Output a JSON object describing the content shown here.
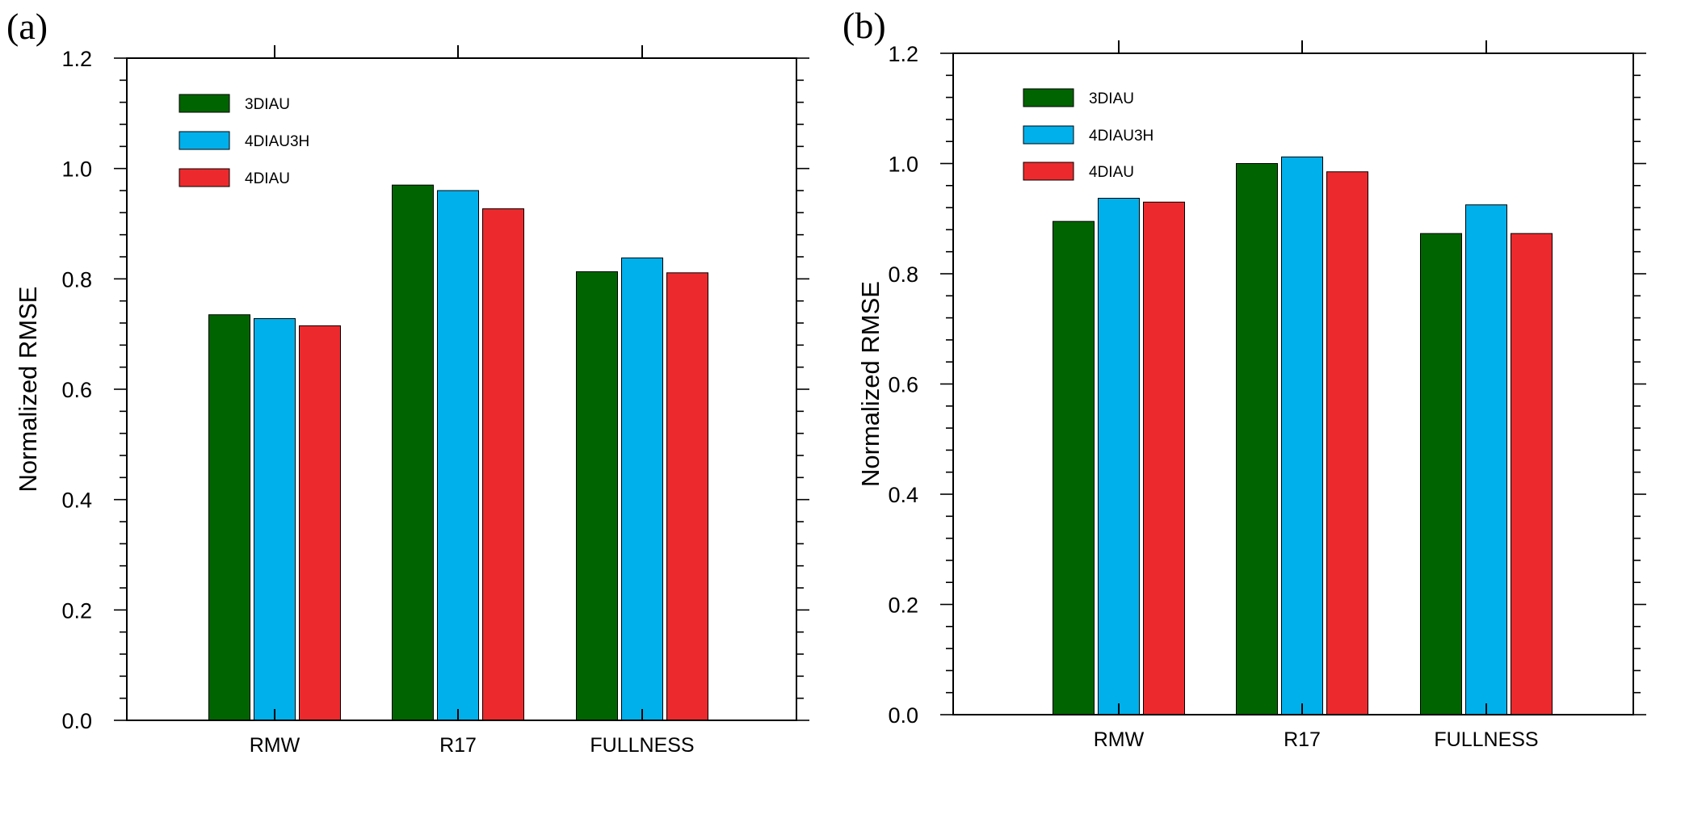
{
  "colors": {
    "3DIAU": "#006400",
    "4DIAU3H": "#00b0eb",
    "4DIAU": "#ec2a2d"
  },
  "chart_data": [
    {
      "type": "bar",
      "panel_label": "(a)",
      "categories": [
        "RMW",
        "R17",
        "FULLNESS"
      ],
      "series": [
        {
          "name": "3DIAU",
          "values": [
            0.735,
            0.97,
            0.813
          ]
        },
        {
          "name": "4DIAU3H",
          "values": [
            0.728,
            0.96,
            0.838
          ]
        },
        {
          "name": "4DIAU",
          "values": [
            0.715,
            0.927,
            0.811
          ]
        }
      ],
      "ylabel": "Normalized RMSE",
      "xlabel": "",
      "ylim": [
        0.0,
        1.2
      ],
      "yticks": [
        "0.0",
        "0.2",
        "0.4",
        "0.6",
        "0.8",
        "1.0",
        "1.2"
      ],
      "legend": "top-left"
    },
    {
      "type": "bar",
      "panel_label": "(b)",
      "categories": [
        "RMW",
        "R17",
        "FULLNESS"
      ],
      "series": [
        {
          "name": "3DIAU",
          "values": [
            0.895,
            1.0,
            0.873
          ]
        },
        {
          "name": "4DIAU3H",
          "values": [
            0.937,
            1.012,
            0.925
          ]
        },
        {
          "name": "4DIAU",
          "values": [
            0.93,
            0.985,
            0.873
          ]
        }
      ],
      "ylabel": "Normalized RMSE",
      "xlabel": "",
      "ylim": [
        0.0,
        1.2
      ],
      "yticks": [
        "0.0",
        "0.2",
        "0.4",
        "0.6",
        "0.8",
        "1.0",
        "1.2"
      ],
      "legend": "top-left"
    }
  ]
}
